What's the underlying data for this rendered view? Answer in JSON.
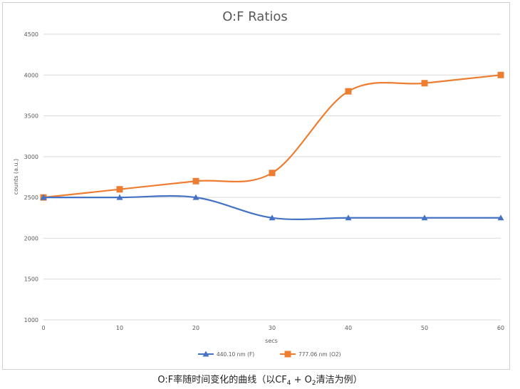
{
  "chart_data": {
    "type": "line",
    "title": "O:F Ratios",
    "xlabel": "secs",
    "ylabel": "counts (a.u.)",
    "x": [
      0,
      10,
      20,
      30,
      40,
      50,
      60
    ],
    "xlim": [
      0,
      60
    ],
    "ylim": [
      1000,
      4500
    ],
    "x_ticks": [
      "0",
      "10",
      "20",
      "30",
      "40",
      "50",
      "60"
    ],
    "y_ticks": [
      "4500",
      "4000",
      "3500",
      "3000",
      "2500",
      "2000",
      "1500",
      "1000"
    ],
    "grid": "horizontal",
    "smooth": true,
    "legend_position": "bottom",
    "series": [
      {
        "name": "440.10 nm (F)",
        "values": [
          2500,
          2500,
          2500,
          2250,
          2250,
          2250,
          2250
        ],
        "color": "#4472C4",
        "marker": "triangle"
      },
      {
        "name": "777.06 nm (O2)",
        "values": [
          2500,
          2600,
          2700,
          2800,
          3800,
          3900,
          4000
        ],
        "color": "#ED7D31",
        "marker": "square"
      }
    ]
  },
  "caption": {
    "prefix": "O:F率随时间变化的曲线（以CF",
    "sub1": "4",
    "middle": " + O",
    "sub2": "2",
    "suffix": "清洁为例）"
  }
}
